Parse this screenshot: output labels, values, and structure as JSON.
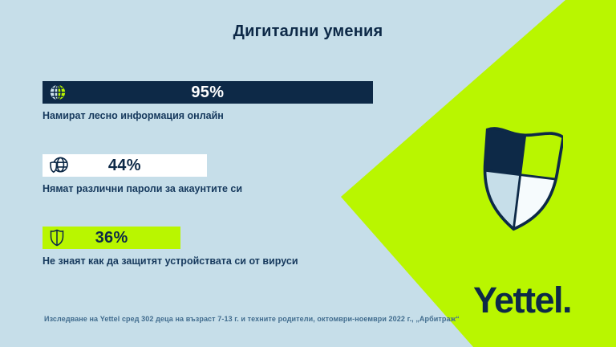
{
  "title": "Дигитални умения",
  "footer": "Изследване на Yettel сред 302 деца на възраст 7-13 г. и техните родители, октомври-ноември 2022 г., „Арбитраж“",
  "brand": {
    "wordmark": "Yettel.",
    "logo_icon": "quartered-shield-icon"
  },
  "colors": {
    "navy": "#0d2947",
    "lime": "#b9f600",
    "light_blue": "#c6dee9",
    "white": "#ffffff",
    "label_navy": "#16395d",
    "footer_blue": "#416c8e"
  },
  "chart_data": {
    "type": "bar",
    "orientation": "horizontal",
    "title": "Дигитални умения",
    "categories": [
      "Намират лесно информация онлайн",
      "Нямат различни пароли за акаунтите си",
      "Не знаят как да защитят устройствата си от вируси"
    ],
    "values": [
      95,
      44,
      36
    ],
    "value_labels": [
      "95%",
      "44%",
      "36%"
    ],
    "xlim": [
      0,
      100
    ],
    "legend": "none",
    "grid": false,
    "bars": [
      {
        "label": "Намират лесно информация онлайн",
        "value": 95,
        "value_label": "95%",
        "icon": "globe-icon",
        "bar_color": "#0d2947",
        "text_color": "#ffffff"
      },
      {
        "label": "Нямат различни пароли за акаунтите си",
        "value": 44,
        "value_label": "44%",
        "icon": "globe-shield-icon",
        "bar_color": "#ffffff",
        "text_color": "#0d2947"
      },
      {
        "label": "Не знаят как да защитят устройствата си от вируси",
        "value": 36,
        "value_label": "36%",
        "icon": "shield-outline-icon",
        "bar_color": "#b9f600",
        "text_color": "#0d2947"
      }
    ]
  }
}
